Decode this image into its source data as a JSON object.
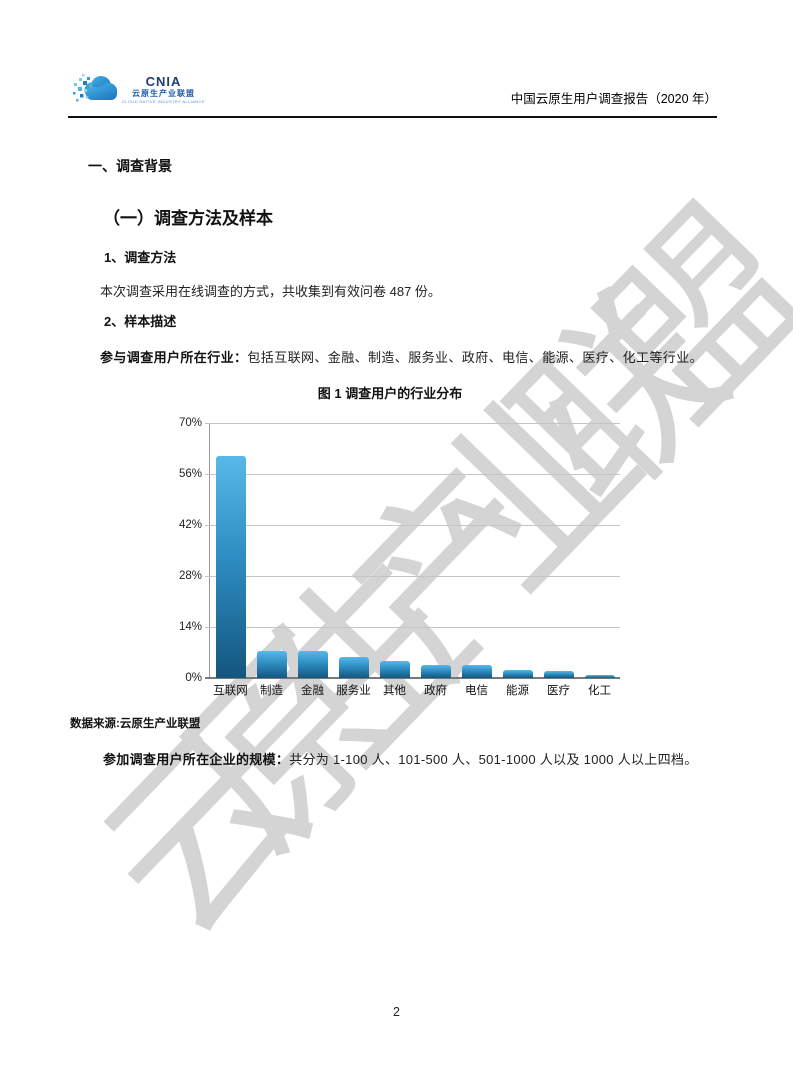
{
  "header": {
    "logo": {
      "acronym": "CNIA",
      "org_cn": "云原生产业联盟",
      "org_en": "CLOUD NATIVE INDUSTRY ALLIANCE"
    },
    "report_title": "中国云原生用户调查报告（2020 年）"
  },
  "watermark": {
    "text": "云原生产业联盟",
    "color": "#d4d4d4"
  },
  "sections": {
    "h1": "一、调查背景",
    "h2": "（一）调查方法及样本",
    "h3_method": "1、调查方法",
    "method_text": "本次调查采用在线调查的方式，共收集到有效问卷 487 份。",
    "h3_sample": "2、样本描述",
    "industry_lead": "参与调查用户所在行业：",
    "industry_text": "包括互联网、金融、制造、服务业、政府、电信、能源、医疗、化工等行业。",
    "data_source": "数据来源:云原生产业联盟",
    "scale_lead": "参加调查用户所在企业的规模：",
    "scale_text": "共分为 1-100 人、101-500 人、501-1000 人以及 1000 人以上四档。"
  },
  "chart_data": {
    "type": "bar",
    "title": "图 1 调查用户的行业分布",
    "categories": [
      "互联网",
      "制造",
      "金融",
      "服务业",
      "其他",
      "政府",
      "电信",
      "能源",
      "医疗",
      "化工"
    ],
    "values": [
      61,
      7.5,
      7.5,
      5.8,
      4.6,
      3.6,
      3.7,
      2.1,
      1.8,
      0.8
    ],
    "unit": "%",
    "xlabel": "",
    "ylabel": "",
    "ylim": [
      0,
      70
    ],
    "yticks": [
      "0%",
      "14%",
      "28%",
      "42%",
      "56%",
      "70%"
    ],
    "grid": true,
    "legend": false,
    "bar_color_top": "#58b8e8",
    "bar_color_bottom": "#14567f"
  },
  "footer": {
    "page_number": "2"
  }
}
